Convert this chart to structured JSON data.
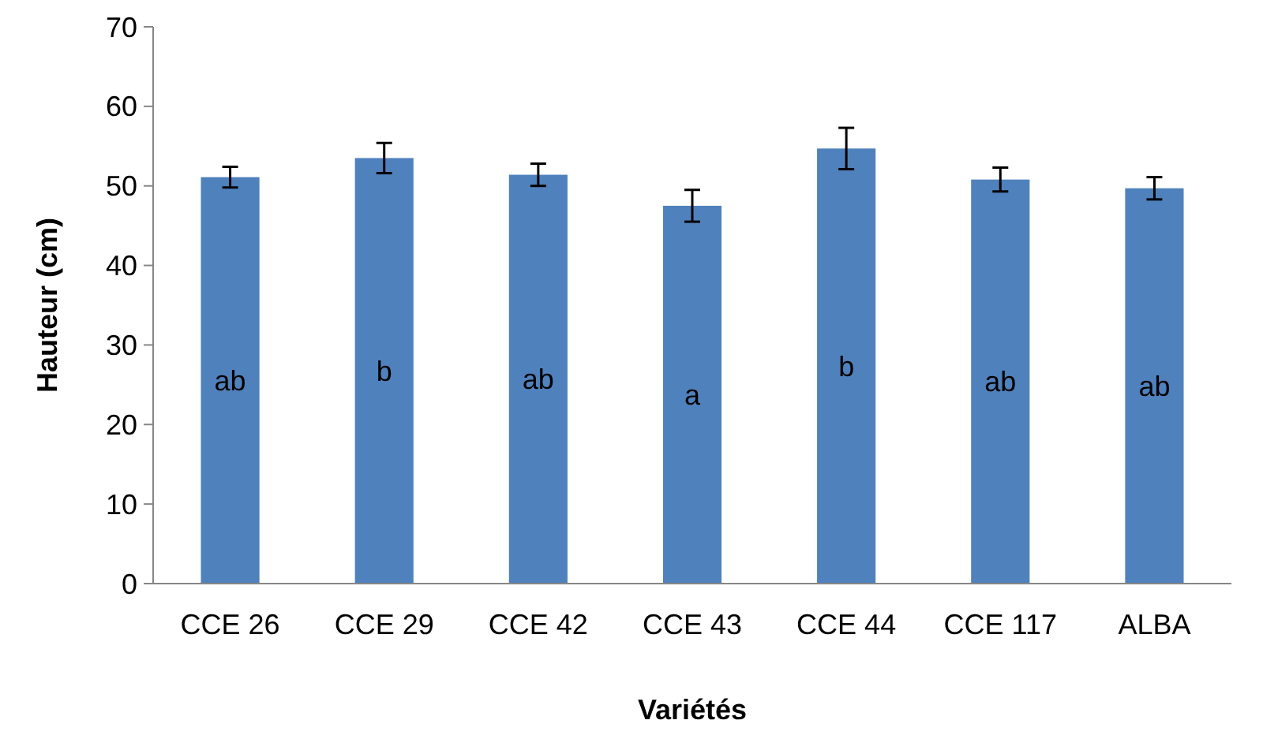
{
  "chart_data": {
    "type": "bar",
    "xlabel": "Variétés",
    "ylabel": "Hauteur (cm)",
    "categories": [
      "CCE 26",
      "CCE 29",
      "CCE 42",
      "CCE 43",
      "CCE 44",
      "CCE 117",
      "ALBA"
    ],
    "values": [
      51.1,
      53.5,
      51.4,
      47.5,
      54.7,
      50.8,
      49.7
    ],
    "errors": [
      1.3,
      1.9,
      1.4,
      2.0,
      2.6,
      1.5,
      1.4
    ],
    "value_labels": [
      "ab",
      "b",
      "ab",
      "a",
      "b",
      "ab",
      "ab"
    ],
    "color": "#4f81bd",
    "ylim": [
      0,
      70
    ],
    "yticks": [
      0,
      10,
      20,
      30,
      40,
      50,
      60,
      70
    ]
  }
}
